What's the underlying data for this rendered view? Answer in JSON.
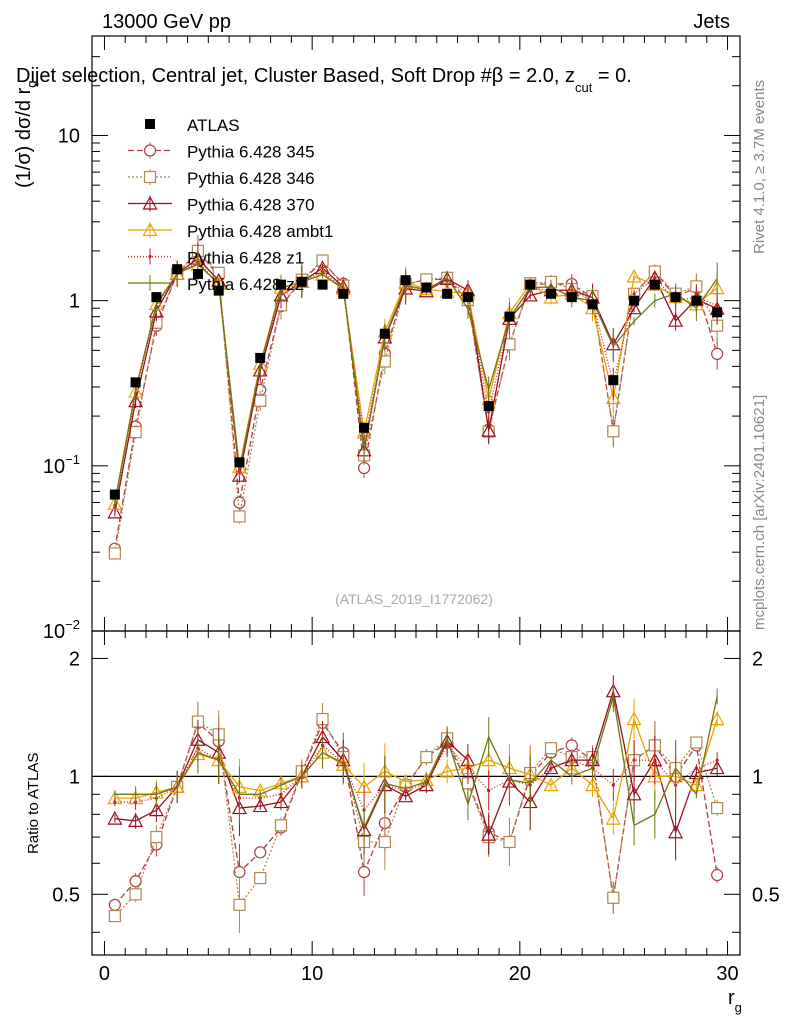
{
  "header": {
    "left": "13000 GeV pp",
    "right": "Jets"
  },
  "side_labels": {
    "rivet": "Rivet 4.1.0, ≥ 3.7M events",
    "mcplots": "mcplots.cern.ch [arXiv:2401.10621]"
  },
  "chart_data": {
    "type": "line",
    "title": "Dijet selection, Central jet, Cluster Based, Soft Drop #β = 2.0, z",
    "title_sub": "cut",
    "title_tail": " = 0.",
    "ylabel_main": "(1/σ) dσ/d r",
    "ylabel_main_sub": "g",
    "ylabel_ratio": "Ratio to ATLAS",
    "xlabel": "r",
    "xlabel_sub": "g",
    "watermark": "(ATLAS_2019_I1772062)",
    "x_ticks": [
      "0",
      "10",
      "20",
      "30"
    ],
    "y_ticks_main": [
      {
        "base": "10",
        "exp": "−2",
        "value": 0.01
      },
      {
        "base": "10",
        "exp": "−1",
        "value": 0.1
      },
      {
        "base": "1",
        "exp": "",
        "value": 1
      },
      {
        "base": "10",
        "exp": "",
        "value": 10
      }
    ],
    "y_ticks_ratio": [
      "0.5",
      "1",
      "2"
    ],
    "xlim": [
      -0.6,
      30.6
    ],
    "ylim_main": [
      0.01,
      40
    ],
    "ylim_ratio": [
      0.35,
      2.35
    ],
    "x": [
      0.5,
      1.5,
      2.5,
      3.5,
      4.5,
      5.5,
      6.5,
      7.5,
      8.5,
      9.5,
      10.5,
      11.5,
      12.5,
      13.5,
      14.5,
      15.5,
      16.5,
      17.5,
      18.5,
      19.5,
      20.5,
      21.5,
      22.5,
      23.5,
      24.5,
      25.5,
      26.5,
      27.5,
      28.5,
      29.5
    ],
    "data": {
      "name": "ATLAS",
      "color": "#000000",
      "values": [
        0.067,
        0.32,
        1.05,
        1.55,
        1.45,
        1.15,
        0.105,
        0.45,
        1.25,
        1.3,
        1.25,
        1.1,
        0.17,
        0.63,
        1.33,
        1.2,
        1.1,
        1.05,
        0.23,
        0.8,
        1.25,
        1.1,
        1.05,
        0.95,
        0.33,
        1.0,
        1.25,
        1.05,
        1.0,
        0.85
      ]
    },
    "series": [
      {
        "name": "Pythia 6.428 345",
        "color": "#b03c46",
        "dash": "6,3",
        "marker": "circle",
        "ratio": [
          0.47,
          0.54,
          0.67,
          0.94,
          1.37,
          1.23,
          0.57,
          0.64,
          0.74,
          1.02,
          1.37,
          1.15,
          0.57,
          0.76,
          0.94,
          1.12,
          1.22,
          0.96,
          0.72,
          0.68,
          1.0,
          1.15,
          1.2,
          1.1,
          0.49,
          1.1,
          1.2,
          1.0,
          1.2,
          0.56
        ]
      },
      {
        "name": "Pythia 6.428 346",
        "color": "#b08850",
        "dash": "2,2",
        "marker": "square",
        "ratio": [
          0.44,
          0.5,
          0.7,
          0.94,
          1.38,
          1.28,
          0.47,
          0.55,
          0.75,
          1.03,
          1.4,
          1.12,
          0.68,
          0.68,
          0.95,
          1.12,
          1.25,
          0.96,
          0.7,
          0.68,
          1.02,
          1.18,
          1.12,
          1.12,
          0.49,
          1.1,
          1.2,
          1.05,
          1.22,
          0.83
        ]
      },
      {
        "name": "Pythia 6.428 370",
        "color": "#990f1e",
        "dash": "",
        "marker": "triangle",
        "ratio": [
          0.78,
          0.77,
          0.82,
          0.94,
          1.24,
          1.15,
          0.83,
          0.84,
          0.86,
          1.0,
          1.26,
          1.1,
          0.73,
          0.95,
          0.89,
          0.95,
          1.23,
          1.1,
          0.71,
          0.97,
          0.86,
          1.05,
          1.1,
          1.1,
          1.65,
          0.9,
          1.1,
          0.72,
          1.02,
          1.05
        ]
      },
      {
        "name": "Pythia 6.428 ambt1",
        "color": "#f0a000",
        "dash": "",
        "marker": "triangle",
        "ratio": [
          0.88,
          0.88,
          0.91,
          0.94,
          1.14,
          1.1,
          0.94,
          0.92,
          0.96,
          1.0,
          1.15,
          1.07,
          0.94,
          1.03,
          0.97,
          0.98,
          1.03,
          1.05,
          1.1,
          1.05,
          1.01,
          0.95,
          1.05,
          0.95,
          0.78,
          1.4,
          1.0,
          1.0,
          0.95,
          1.4
        ]
      },
      {
        "name": "Pythia 6.428 z1",
        "color": "#c81e1e",
        "dash": "1,2",
        "marker": "dot",
        "ratio": [
          0.86,
          0.86,
          0.88,
          0.94,
          1.18,
          1.1,
          0.88,
          0.88,
          0.9,
          1.0,
          1.2,
          1.08,
          0.82,
          0.95,
          0.92,
          0.96,
          1.2,
          1.05,
          0.92,
          0.98,
          0.95,
          1.05,
          1.1,
          1.05,
          0.95,
          1.1,
          1.1,
          0.95,
          1.05,
          1.1
        ]
      },
      {
        "name": "Pythia 6.428 z2",
        "color": "#6e7814",
        "dash": "",
        "marker": "none",
        "ratio": [
          0.9,
          0.9,
          0.9,
          0.94,
          1.15,
          1.1,
          0.9,
          0.9,
          0.95,
          1.0,
          1.15,
          1.08,
          0.74,
          0.96,
          0.93,
          0.97,
          1.25,
          0.85,
          1.26,
          0.98,
          0.96,
          1.1,
          1.0,
          1.05,
          1.6,
          0.75,
          0.8,
          1.05,
          0.9,
          1.6
        ]
      }
    ]
  }
}
